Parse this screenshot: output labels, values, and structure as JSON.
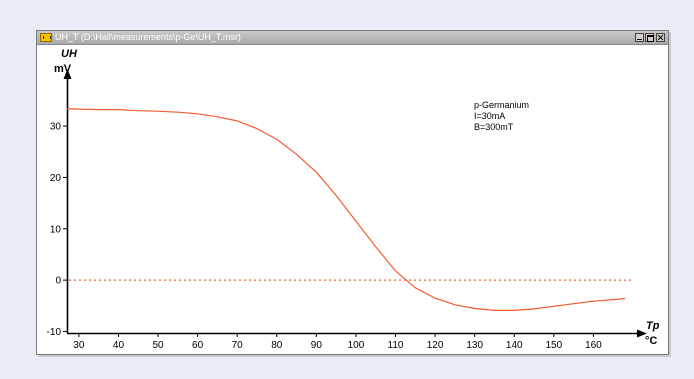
{
  "window": {
    "title": "UH_T (D:\\Hall\\measurements\\p-Ge\\UH_T.msr)"
  },
  "colors": {
    "curve": "#f25c2e",
    "zero_line": "#f25c2e",
    "axes": "#000000"
  },
  "chart_data": {
    "type": "line",
    "ylabel": "UH",
    "yunit": "mV",
    "xlabel": "Tp",
    "xunit": "°C",
    "xlim": [
      27,
      170
    ],
    "ylim": [
      -10.3,
      38
    ],
    "x_ticks": [
      30,
      40,
      50,
      60,
      70,
      80,
      90,
      100,
      110,
      120,
      130,
      140,
      150,
      160
    ],
    "y_ticks": [
      -10,
      0,
      10,
      20,
      30
    ],
    "grid": false,
    "annotation": [
      "p-Germanium",
      "I=30mA",
      "B=300mT"
    ],
    "reference_lines": [
      {
        "y": 0,
        "style": "dotted"
      }
    ],
    "series": [
      {
        "x": [
          27,
          30,
          35,
          40,
          45,
          50,
          55,
          60,
          65,
          70,
          75,
          80,
          85,
          90,
          95,
          100,
          105,
          110,
          115,
          120,
          125,
          130,
          135,
          140,
          145,
          150,
          155,
          160,
          165,
          168
        ],
        "y": [
          33.4,
          33.3,
          33.2,
          33.2,
          33.0,
          32.9,
          32.7,
          32.4,
          31.8,
          31.0,
          29.5,
          27.4,
          24.5,
          21.0,
          16.5,
          11.5,
          6.5,
          1.8,
          -1.5,
          -3.5,
          -4.8,
          -5.5,
          -5.9,
          -5.9,
          -5.6,
          -5.1,
          -4.6,
          -4.1,
          -3.8,
          -3.6
        ]
      }
    ]
  }
}
